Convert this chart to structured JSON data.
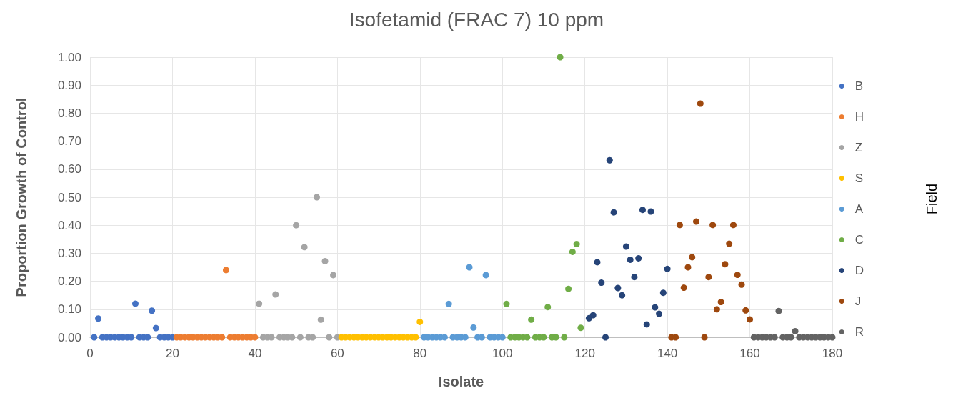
{
  "chart_data": {
    "type": "scatter",
    "title": "Isofetamid (FRAC 7) 10 ppm",
    "xlabel": "Isolate",
    "ylabel": "Proportion Growth of Control",
    "legend_title": "Field",
    "xlim": [
      0,
      180
    ],
    "xticks": [
      0,
      20,
      40,
      60,
      80,
      100,
      120,
      140,
      160,
      180
    ],
    "ylim": [
      0,
      1
    ],
    "yticks": [
      {
        "value": 0,
        "label": "0.00"
      },
      {
        "value": 0.1,
        "label": "0.10"
      },
      {
        "value": 0.2,
        "label": "0.20"
      },
      {
        "value": 0.3,
        "label": "0.30"
      },
      {
        "value": 0.4,
        "label": "0.40"
      },
      {
        "value": 0.5,
        "label": "0.50"
      },
      {
        "value": 0.6,
        "label": "0.60"
      },
      {
        "value": 0.7,
        "label": "0.70"
      },
      {
        "value": 0.8,
        "label": "0.80"
      },
      {
        "value": 0.9,
        "label": "0.90"
      },
      {
        "value": 1,
        "label": "1.00"
      }
    ],
    "grid": true,
    "legend": "right",
    "marker": "circle",
    "series": [
      {
        "name": "B",
        "color": "#4472c4",
        "x": [
          1,
          2,
          3,
          4,
          5,
          6,
          7,
          8,
          9,
          10,
          11,
          12,
          13,
          14,
          15,
          16,
          17,
          18,
          19,
          20
        ],
        "values": [
          0,
          0.067,
          0,
          0,
          0,
          0,
          0,
          0,
          0,
          0,
          0.12,
          0,
          0,
          0,
          0.095,
          0.033,
          0,
          0,
          0,
          0
        ]
      },
      {
        "name": "H",
        "color": "#ed7d31",
        "x": [
          21,
          22,
          23,
          24,
          25,
          26,
          27,
          28,
          29,
          30,
          31,
          32,
          33,
          34,
          35,
          36,
          37,
          38,
          39,
          40
        ],
        "values": [
          0,
          0,
          0,
          0,
          0,
          0,
          0,
          0,
          0,
          0,
          0,
          0,
          0.24,
          0,
          0,
          0,
          0,
          0,
          0,
          0
        ]
      },
      {
        "name": "Z",
        "color": "#a5a5a5",
        "x": [
          41,
          42,
          43,
          44,
          45,
          46,
          47,
          48,
          49,
          50,
          51,
          52,
          53,
          54,
          55,
          56,
          57,
          58,
          59,
          60
        ],
        "values": [
          0.12,
          0,
          0,
          0,
          0.153,
          0,
          0,
          0,
          0,
          0.4,
          0,
          0.322,
          0,
          0,
          0.5,
          0.063,
          0.272,
          0,
          0.222,
          0
        ]
      },
      {
        "name": "S",
        "color": "#ffc000",
        "x": [
          61,
          62,
          63,
          64,
          65,
          66,
          67,
          68,
          69,
          70,
          71,
          72,
          73,
          74,
          75,
          76,
          77,
          78,
          79,
          80
        ],
        "values": [
          0,
          0,
          0,
          0,
          0,
          0,
          0,
          0,
          0,
          0,
          0,
          0,
          0,
          0,
          0,
          0,
          0,
          0,
          0,
          0.055
        ]
      },
      {
        "name": "A",
        "color": "#5b9bd5",
        "x": [
          81,
          82,
          83,
          84,
          85,
          86,
          87,
          88,
          89,
          90,
          91,
          92,
          93,
          94,
          95,
          96,
          97,
          98,
          99,
          100
        ],
        "values": [
          0,
          0,
          0,
          0,
          0,
          0,
          0.119,
          0,
          0,
          0,
          0,
          0.25,
          0.035,
          0,
          0,
          0.222,
          0,
          0,
          0,
          0
        ]
      },
      {
        "name": "C",
        "color": "#70ad47",
        "x": [
          101,
          102,
          103,
          104,
          105,
          106,
          107,
          108,
          109,
          110,
          111,
          112,
          113,
          114,
          115,
          116,
          117,
          118,
          119
        ],
        "values": [
          0.119,
          0,
          0,
          0,
          0,
          0,
          0.063,
          0,
          0,
          0,
          0.108,
          0,
          0,
          1,
          0,
          0.173,
          0.305,
          0.333,
          0.034
        ]
      },
      {
        "name": "D",
        "color": "#264478",
        "x": [
          121,
          122,
          123,
          124,
          125,
          126,
          127,
          128,
          129,
          130,
          131,
          132,
          133,
          134,
          135,
          136,
          137,
          138,
          139,
          140
        ],
        "values": [
          0.068,
          0.079,
          0.268,
          0.195,
          0,
          0.632,
          0.446,
          0.176,
          0.15,
          0.324,
          0.277,
          0.215,
          0.282,
          0.455,
          0.046,
          0.449,
          0.107,
          0.084,
          0.159,
          0.244
        ]
      },
      {
        "name": "J",
        "color": "#9e480e",
        "x": [
          141,
          142,
          143,
          144,
          145,
          146,
          147,
          148,
          149,
          150,
          151,
          152,
          153,
          154,
          155,
          156,
          157,
          158,
          159,
          160
        ],
        "values": [
          0,
          0,
          0.401,
          0.177,
          0.25,
          0.286,
          0.413,
          0.834,
          0,
          0.215,
          0.401,
          0.1,
          0.126,
          0.261,
          0.334,
          0.401,
          0.223,
          0.188,
          0.096,
          0.064
        ]
      },
      {
        "name": "R",
        "color": "#636363",
        "x": [
          161,
          162,
          163,
          164,
          165,
          166,
          167,
          168,
          169,
          170,
          171,
          172,
          173,
          174,
          175,
          176,
          177,
          178,
          179,
          180
        ],
        "values": [
          0,
          0,
          0,
          0,
          0,
          0,
          0.094,
          0,
          0,
          0,
          0.022,
          0,
          0,
          0,
          0,
          0,
          0,
          0,
          0,
          0
        ]
      }
    ]
  }
}
